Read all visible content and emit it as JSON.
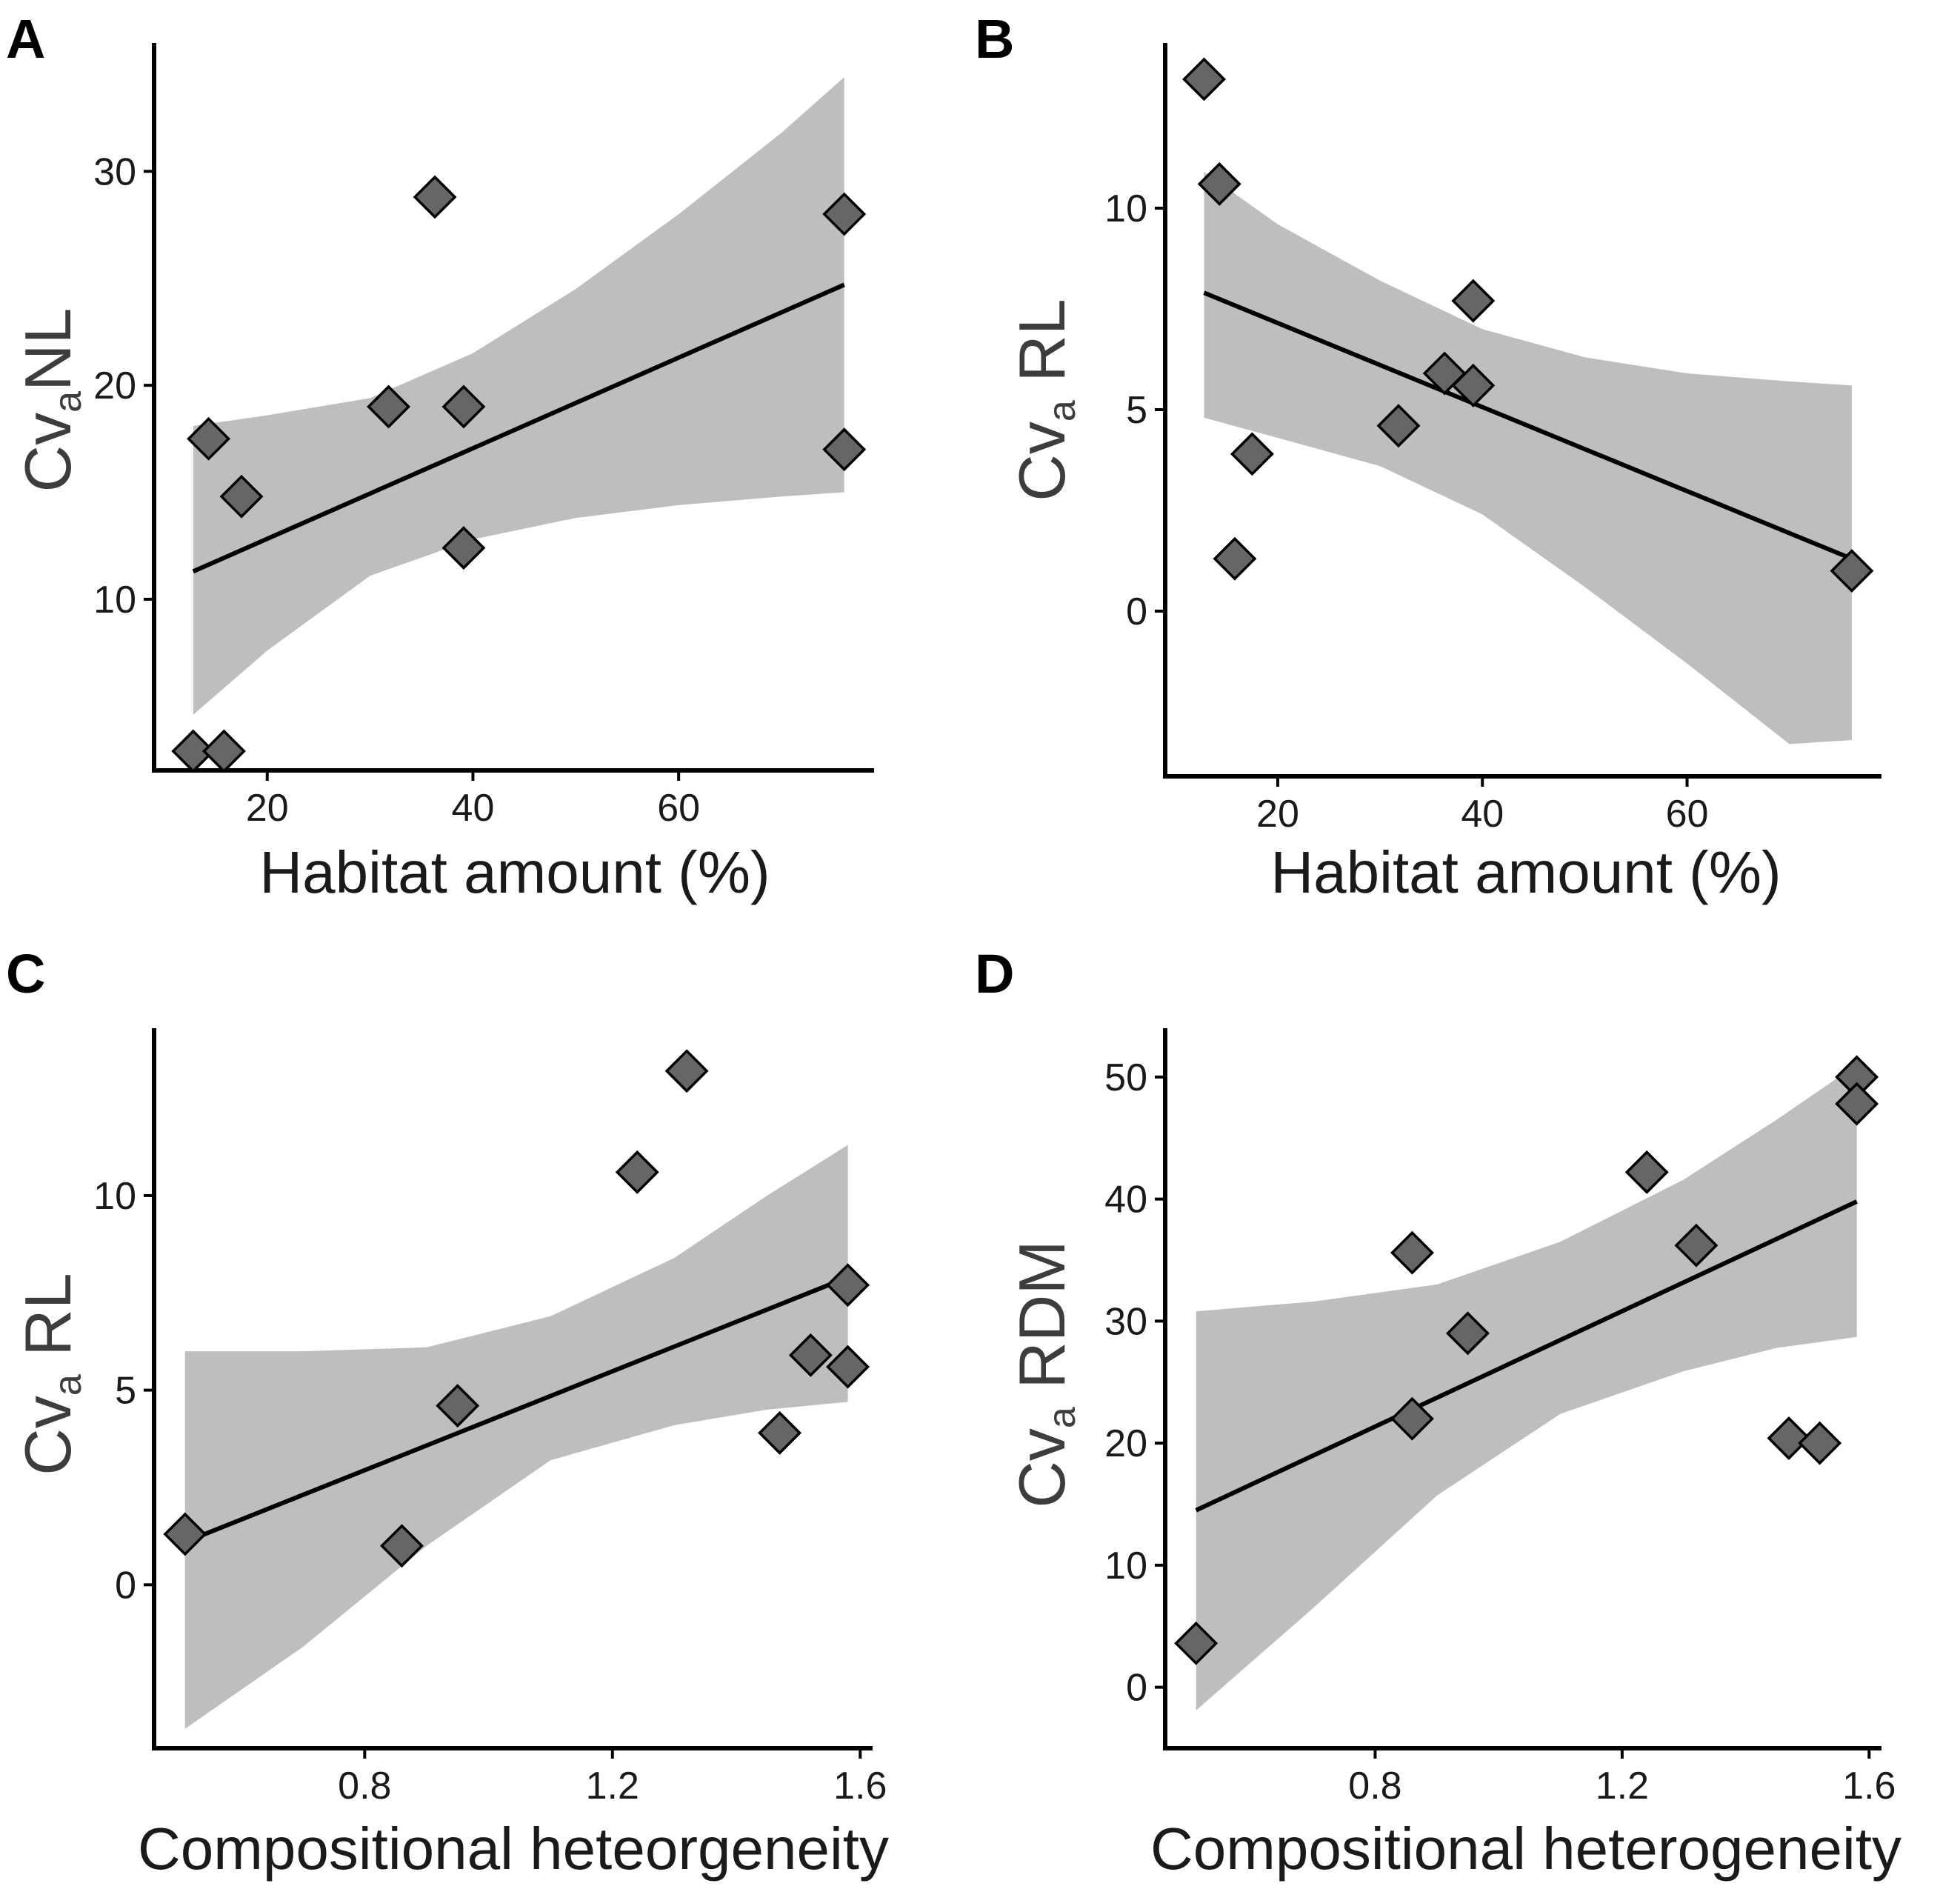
{
  "chart_data": [
    {
      "panel": "A",
      "type": "scatter",
      "xlabel": "Habitat amount (%)",
      "ylabel_main": "Cv",
      "ylabel_sub": "a",
      "ylabel_rest": "NL",
      "xlim": [
        9,
        79
      ],
      "ylim": [
        2,
        36
      ],
      "xticks": [
        {
          "v": 20,
          "label": "20"
        },
        {
          "v": 40,
          "label": "40"
        },
        {
          "v": 60,
          "label": "60"
        }
      ],
      "yticks": [
        {
          "v": 10,
          "label": "10"
        },
        {
          "v": 20,
          "label": "20"
        },
        {
          "v": 30,
          "label": "30"
        }
      ],
      "points": [
        [
          12.8,
          2.9
        ],
        [
          15.8,
          2.9
        ],
        [
          14.3,
          17.5
        ],
        [
          17.5,
          14.8
        ],
        [
          31.8,
          19.0
        ],
        [
          36.3,
          28.8
        ],
        [
          39.1,
          19.0
        ],
        [
          39.1,
          12.4
        ],
        [
          76.1,
          28.0
        ],
        [
          76.1,
          17.0
        ]
      ],
      "fit": {
        "x0": 12.8,
        "y0": 11.3,
        "x1": 76.1,
        "y1": 24.7
      },
      "band": {
        "upper": [
          [
            12.8,
            18.1
          ],
          [
            20,
            18.6
          ],
          [
            30,
            19.4
          ],
          [
            40,
            21.5
          ],
          [
            50,
            24.5
          ],
          [
            60,
            28.0
          ],
          [
            70,
            31.8
          ],
          [
            76.1,
            34.4
          ]
        ],
        "lower": [
          [
            12.8,
            4.6
          ],
          [
            20,
            7.6
          ],
          [
            30,
            11.1
          ],
          [
            40,
            12.8
          ],
          [
            50,
            13.8
          ],
          [
            60,
            14.4
          ],
          [
            70,
            14.8
          ],
          [
            76.1,
            15.0
          ]
        ]
      }
    },
    {
      "panel": "B",
      "type": "scatter",
      "xlabel": "Habitat amount (%)",
      "ylabel_main": "Cv",
      "ylabel_sub": "a",
      "ylabel_rest": " RL",
      "xlim": [
        9,
        79
      ],
      "ylim": [
        -4.1,
        14.1
      ],
      "xticks": [
        {
          "v": 20,
          "label": "20"
        },
        {
          "v": 40,
          "label": "40"
        },
        {
          "v": 60,
          "label": "60"
        }
      ],
      "yticks": [
        {
          "v": 0,
          "label": "0"
        },
        {
          "v": 5,
          "label": "5"
        },
        {
          "v": 10,
          "label": "10"
        }
      ],
      "points": [
        [
          12.8,
          13.2
        ],
        [
          14.3,
          10.6
        ],
        [
          17.5,
          3.9
        ],
        [
          15.8,
          1.3
        ],
        [
          31.8,
          4.6
        ],
        [
          36.3,
          5.9
        ],
        [
          39.1,
          7.7
        ],
        [
          39.1,
          5.6
        ],
        [
          76.1,
          1.0
        ]
      ],
      "fit": {
        "x0": 12.8,
        "y0": 7.9,
        "x1": 76.1,
        "y1": 1.3
      },
      "band": {
        "upper": [
          [
            12.8,
            10.9
          ],
          [
            20,
            9.6
          ],
          [
            30,
            8.2
          ],
          [
            40,
            7.0
          ],
          [
            50,
            6.3
          ],
          [
            60,
            5.9
          ],
          [
            70,
            5.7
          ],
          [
            76.1,
            5.6
          ]
        ],
        "lower": [
          [
            12.8,
            4.8
          ],
          [
            20,
            4.3
          ],
          [
            30,
            3.6
          ],
          [
            40,
            2.4
          ],
          [
            50,
            0.6
          ],
          [
            60,
            -1.3
          ],
          [
            70,
            -3.3
          ],
          [
            76.1,
            -3.2
          ]
        ]
      }
    },
    {
      "panel": "C",
      "type": "scatter",
      "xlabel": "Compositional heteorgeneity",
      "ylabel_main": "Cv",
      "ylabel_sub": "a",
      "ylabel_rest": " RL",
      "xlim": [
        0.46,
        1.62
      ],
      "ylim": [
        -4.2,
        14.3
      ],
      "xticks": [
        {
          "v": 0.8,
          "label": "0.8"
        },
        {
          "v": 1.2,
          "label": "1.2"
        },
        {
          "v": 1.6,
          "label": "1.6"
        }
      ],
      "yticks": [
        {
          "v": 0,
          "label": "0"
        },
        {
          "v": 5,
          "label": "5"
        },
        {
          "v": 10,
          "label": "10"
        }
      ],
      "points": [
        [
          0.51,
          1.3
        ],
        [
          0.86,
          1.0
        ],
        [
          0.95,
          4.6
        ],
        [
          1.24,
          10.6
        ],
        [
          1.32,
          13.2
        ],
        [
          1.47,
          3.9
        ],
        [
          1.52,
          5.9
        ],
        [
          1.58,
          7.7
        ],
        [
          1.58,
          5.6
        ]
      ],
      "fit": {
        "x0": 0.51,
        "y0": 1.1,
        "x1": 1.58,
        "y1": 7.9
      },
      "band": {
        "upper": [
          [
            0.51,
            6.0
          ],
          [
            0.7,
            6.0
          ],
          [
            0.9,
            6.1
          ],
          [
            1.1,
            6.9
          ],
          [
            1.3,
            8.4
          ],
          [
            1.45,
            10.0
          ],
          [
            1.58,
            11.3
          ]
        ],
        "lower": [
          [
            0.51,
            -3.7
          ],
          [
            0.7,
            -1.6
          ],
          [
            0.9,
            1.0
          ],
          [
            1.1,
            3.2
          ],
          [
            1.3,
            4.1
          ],
          [
            1.45,
            4.5
          ],
          [
            1.58,
            4.7
          ]
        ]
      }
    },
    {
      "panel": "D",
      "type": "scatter",
      "xlabel": "Compositional heterogeneity",
      "ylabel_main": "Cv",
      "ylabel_sub": "a",
      "ylabel_rest": " RDM",
      "xlim": [
        0.46,
        1.62
      ],
      "ylim": [
        -5,
        54
      ],
      "xticks": [
        {
          "v": 0.8,
          "label": "0.8"
        },
        {
          "v": 1.2,
          "label": "1.2"
        },
        {
          "v": 1.6,
          "label": "1.6"
        }
      ],
      "yticks": [
        {
          "v": 0,
          "label": "0"
        },
        {
          "v": 10,
          "label": "10"
        },
        {
          "v": 20,
          "label": "20"
        },
        {
          "v": 30,
          "label": "30"
        },
        {
          "v": 40,
          "label": "40"
        },
        {
          "v": 50,
          "label": "50"
        }
      ],
      "points": [
        [
          0.51,
          3.6
        ],
        [
          0.86,
          22.0
        ],
        [
          0.86,
          35.6
        ],
        [
          0.95,
          29.0
        ],
        [
          1.24,
          42.2
        ],
        [
          1.32,
          36.2
        ],
        [
          1.47,
          20.4
        ],
        [
          1.52,
          20.0
        ],
        [
          1.58,
          50.0
        ],
        [
          1.58,
          47.8
        ]
      ],
      "fit": {
        "x0": 0.51,
        "y0": 14.5,
        "x1": 1.58,
        "y1": 39.8
      },
      "band": {
        "upper": [
          [
            0.51,
            30.8
          ],
          [
            0.7,
            31.6
          ],
          [
            0.9,
            33.0
          ],
          [
            1.1,
            36.5
          ],
          [
            1.3,
            41.6
          ],
          [
            1.45,
            46.5
          ],
          [
            1.58,
            51.0
          ]
        ],
        "lower": [
          [
            0.51,
            -1.9
          ],
          [
            0.7,
            6.5
          ],
          [
            0.9,
            15.7
          ],
          [
            1.1,
            22.4
          ],
          [
            1.3,
            25.9
          ],
          [
            1.45,
            27.8
          ],
          [
            1.58,
            28.7
          ]
        ]
      }
    }
  ]
}
